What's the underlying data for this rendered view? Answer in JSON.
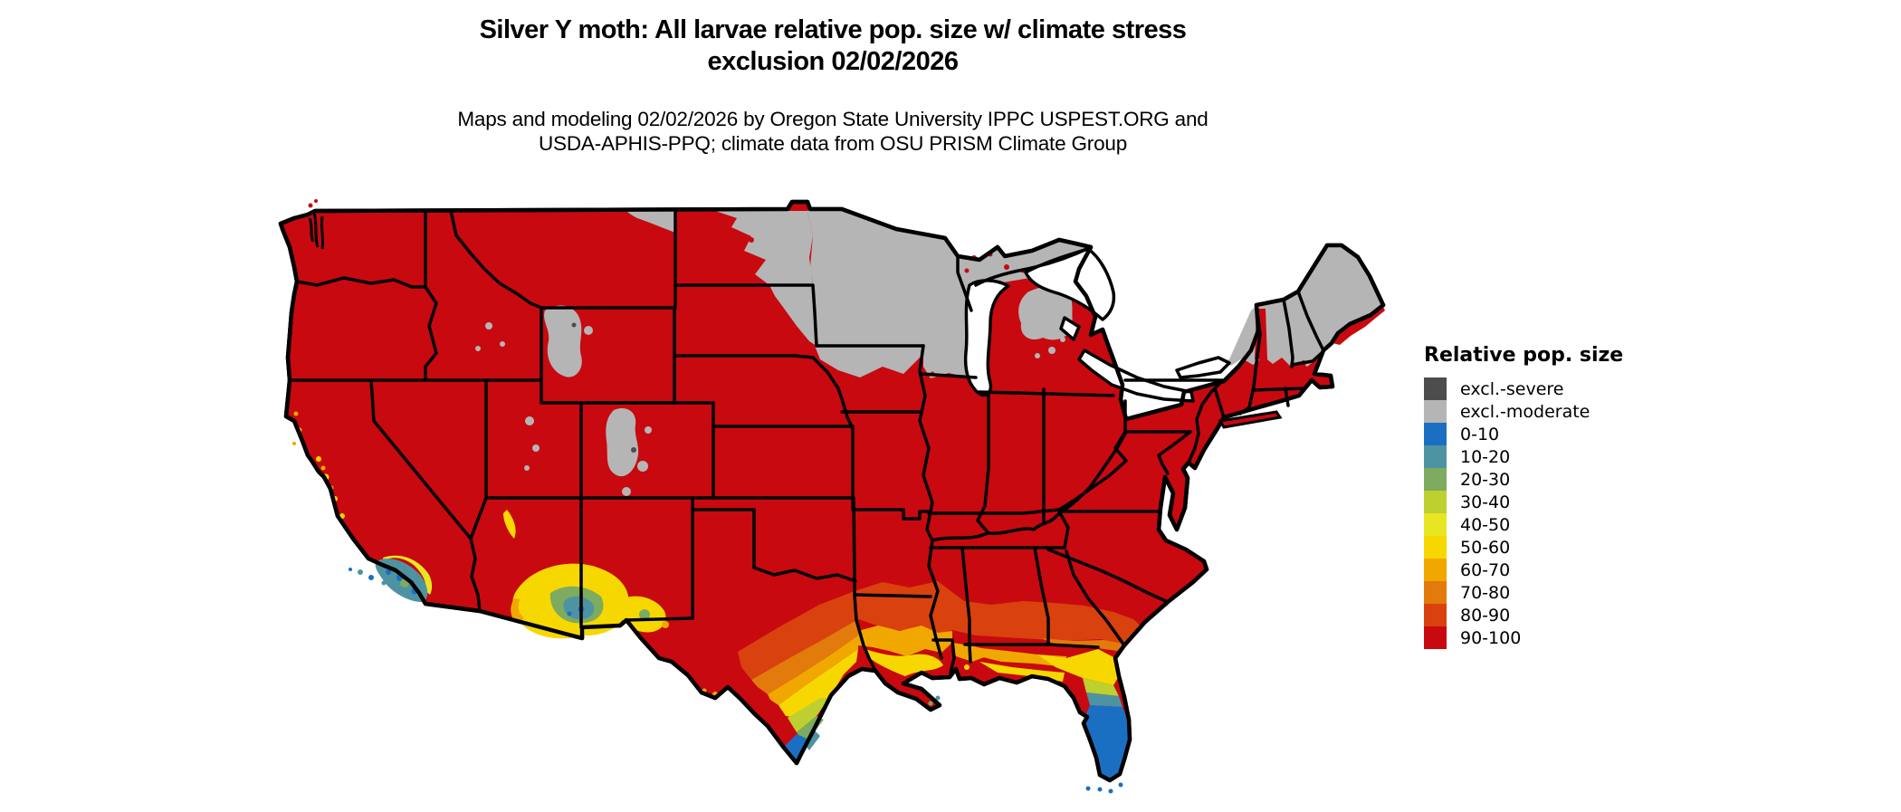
{
  "title": {
    "line1": "Silver Y moth: All larvae relative pop. size w/ climate stress",
    "line2": "exclusion 02/02/2026"
  },
  "subtitle": {
    "line1": "Maps and modeling 02/02/2026 by Oregon State University IPPC USPEST.ORG and",
    "line2": "USDA-APHIS-PPQ; climate data from OSU PRISM Climate Group"
  },
  "legend": {
    "title": "Relative pop. size",
    "items": [
      {
        "label": "excl.-severe",
        "color": "#4d4d4d"
      },
      {
        "label": "excl.-moderate",
        "color": "#b5b5b5"
      },
      {
        "label": "0-10",
        "color": "#1b6fc2"
      },
      {
        "label": "10-20",
        "color": "#4e93a2"
      },
      {
        "label": "20-30",
        "color": "#7dab60"
      },
      {
        "label": "30-40",
        "color": "#bdd02f"
      },
      {
        "label": "40-50",
        "color": "#e8e522"
      },
      {
        "label": "50-60",
        "color": "#f6d800"
      },
      {
        "label": "60-70",
        "color": "#f0a800"
      },
      {
        "label": "70-80",
        "color": "#e37a0c"
      },
      {
        "label": "80-90",
        "color": "#d9410e"
      },
      {
        "label": "90-100",
        "color": "#c8090f"
      }
    ]
  },
  "palette": {
    "excl-severe": "#4d4d4d",
    "excl-moderate": "#b5b5b5",
    "0-10": "#1b6fc2",
    "10-20": "#4e93a2",
    "20-30": "#7dab60",
    "30-40": "#bdd02f",
    "40-50": "#e8e522",
    "50-60": "#f6d800",
    "60-70": "#f0a800",
    "70-80": "#e37a0c",
    "80-90": "#d9410e",
    "90-100": "#c8090f",
    "water": "#ffffff",
    "border": "#000000"
  },
  "map": {
    "kind": "CONUS choropleth raster map",
    "base_category": "90-100",
    "visible_categories": [
      "excl.-moderate",
      "excl.-severe",
      "0-10",
      "10-20",
      "20-30",
      "30-40",
      "40-50",
      "50-60",
      "60-70",
      "70-80",
      "80-90",
      "90-100"
    ]
  }
}
